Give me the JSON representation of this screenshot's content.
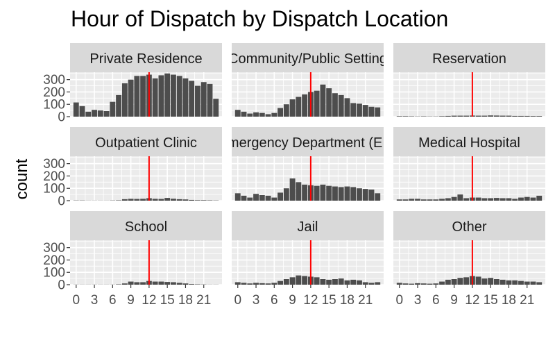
{
  "chart_data": {
    "type": "bar",
    "title": "Hour of Dispatch by Dispatch Location",
    "xlabel": "",
    "ylabel": "count",
    "x": [
      0,
      1,
      2,
      3,
      4,
      5,
      6,
      7,
      8,
      9,
      10,
      11,
      12,
      13,
      14,
      15,
      16,
      17,
      18,
      19,
      20,
      21,
      22,
      23
    ],
    "x_ticks": [
      0,
      3,
      6,
      9,
      12,
      15,
      18,
      21
    ],
    "x_tick_labels": [
      "0",
      "3",
      "6",
      "9",
      "12",
      "15",
      "18",
      "21"
    ],
    "xlim": [
      -1,
      24
    ],
    "ylim": [
      0,
      360
    ],
    "y_ticks": [
      0,
      100,
      200,
      300
    ],
    "y_tick_labels": [
      "0",
      "100",
      "200",
      "300"
    ],
    "reference_line": {
      "x": 12,
      "color": "#FF0000"
    },
    "grid": true,
    "colors": {
      "bar": "#4D4D4D",
      "panel": "#EBEBEB",
      "strip": "#D9D9D9",
      "grid": "#FFFFFF"
    },
    "facets": [
      {
        "name": "Private Residence",
        "values": [
          115,
          85,
          40,
          55,
          50,
          45,
          120,
          175,
          270,
          300,
          330,
          330,
          340,
          310,
          335,
          350,
          340,
          330,
          310,
          290,
          250,
          280,
          265,
          145
        ]
      },
      {
        "name": "Community/Public Setting",
        "values": [
          55,
          40,
          25,
          35,
          30,
          20,
          30,
          70,
          100,
          140,
          160,
          180,
          200,
          210,
          260,
          230,
          190,
          175,
          150,
          110,
          105,
          95,
          80,
          75
        ]
      },
      {
        "name": "Reservation",
        "values": [
          4,
          4,
          3,
          2,
          3,
          2,
          2,
          4,
          6,
          8,
          8,
          8,
          9,
          8,
          8,
          10,
          9,
          8,
          8,
          6,
          6,
          6,
          5,
          5
        ]
      },
      {
        "name": "Outpatient Clinic",
        "values": [
          2,
          2,
          1,
          1,
          1,
          1,
          2,
          3,
          12,
          15,
          14,
          15,
          20,
          15,
          14,
          22,
          16,
          12,
          10,
          6,
          4,
          4,
          3,
          2
        ]
      },
      {
        "name": "Emergency Department (ED)",
        "values": [
          60,
          40,
          25,
          55,
          45,
          40,
          25,
          65,
          100,
          180,
          150,
          130,
          125,
          120,
          130,
          120,
          115,
          110,
          115,
          110,
          100,
          95,
          90,
          60
        ]
      },
      {
        "name": "Medical Hospital",
        "values": [
          10,
          10,
          15,
          15,
          10,
          10,
          10,
          15,
          20,
          30,
          50,
          20,
          25,
          25,
          20,
          20,
          22,
          20,
          20,
          15,
          25,
          30,
          25,
          40
        ]
      },
      {
        "name": "School",
        "values": [
          1,
          1,
          1,
          1,
          1,
          1,
          1,
          3,
          10,
          25,
          20,
          20,
          30,
          25,
          25,
          22,
          20,
          15,
          10,
          5,
          3,
          2,
          1,
          1
        ]
      },
      {
        "name": "Jail",
        "values": [
          20,
          15,
          10,
          15,
          12,
          10,
          15,
          30,
          45,
          60,
          75,
          70,
          65,
          60,
          45,
          40,
          45,
          50,
          35,
          40,
          35,
          20,
          15,
          20
        ]
      },
      {
        "name": "Other",
        "values": [
          15,
          10,
          8,
          12,
          10,
          8,
          10,
          25,
          40,
          45,
          55,
          60,
          70,
          65,
          50,
          55,
          45,
          40,
          35,
          35,
          30,
          25,
          25,
          20
        ]
      }
    ]
  }
}
